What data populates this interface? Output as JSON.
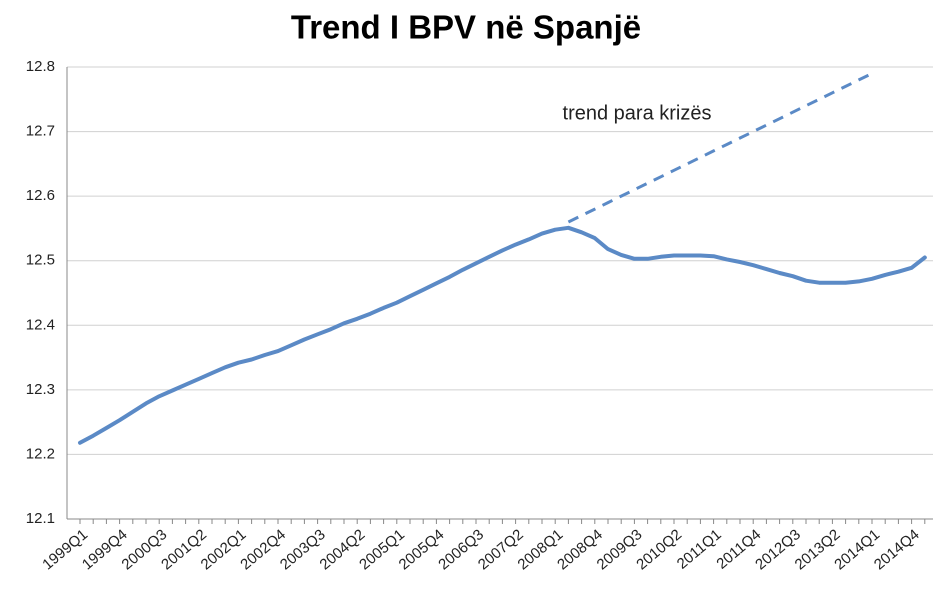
{
  "chart_data": {
    "type": "line",
    "title": "Trend I BPV në Spanjë",
    "annotation": "trend para krizës",
    "categories": [
      "1999Q1",
      null,
      null,
      "1999Q4",
      null,
      null,
      "2000Q3",
      null,
      null,
      "2001Q2",
      null,
      null,
      "2002Q1",
      null,
      null,
      "2002Q4",
      null,
      null,
      "2003Q3",
      null,
      null,
      "2004Q2",
      null,
      null,
      "2005Q1",
      null,
      null,
      "2005Q4",
      null,
      null,
      "2006Q3",
      null,
      null,
      "2007Q2",
      null,
      null,
      "2008Q1",
      null,
      null,
      "2008Q4",
      null,
      null,
      "2009Q3",
      null,
      null,
      "2010Q2",
      null,
      null,
      "2011Q1",
      null,
      null,
      "2011Q4",
      null,
      null,
      "2012Q3",
      null,
      null,
      "2013Q2",
      null,
      null,
      "2014Q1",
      null,
      null,
      "2014Q4",
      null
    ],
    "series": [
      {
        "name": null,
        "color": "#5b8ac6",
        "style": "solid",
        "values": [
          12.218,
          12.229,
          12.241,
          12.253,
          12.266,
          12.279,
          12.29,
          12.299,
          12.308,
          12.317,
          12.326,
          12.335,
          12.342,
          12.347,
          12.354,
          12.36,
          12.369,
          12.378,
          12.386,
          12.394,
          12.403,
          12.41,
          12.418,
          12.427,
          12.435,
          12.445,
          12.455,
          12.465,
          12.475,
          12.486,
          12.496,
          12.506,
          12.516,
          12.525,
          12.533,
          12.542,
          12.548,
          12.551,
          12.544,
          12.535,
          12.518,
          12.509,
          12.503,
          12.503,
          12.506,
          12.508,
          12.508,
          12.508,
          12.507,
          12.502,
          12.498,
          12.493,
          12.487,
          12.481,
          12.476,
          12.469,
          12.466,
          12.466,
          12.466,
          12.468,
          12.472,
          12.478,
          12.483,
          12.489,
          12.505
        ]
      },
      {
        "name": null,
        "color": "#5b8ac6",
        "style": "dashed",
        "values": [
          null,
          null,
          null,
          null,
          null,
          null,
          null,
          null,
          null,
          null,
          null,
          null,
          null,
          null,
          null,
          null,
          null,
          null,
          null,
          null,
          null,
          null,
          null,
          null,
          null,
          null,
          null,
          null,
          null,
          null,
          null,
          null,
          null,
          null,
          null,
          null,
          null,
          12.56,
          12.57,
          12.58,
          12.59,
          12.6,
          12.61,
          12.62,
          12.63,
          12.64,
          12.65,
          12.66,
          12.67,
          12.68,
          12.69,
          12.7,
          12.71,
          12.72,
          12.73,
          12.74,
          12.75,
          12.76,
          12.77,
          12.78,
          12.79,
          null,
          null,
          null,
          null
        ]
      }
    ],
    "ylim": [
      12.1,
      12.8
    ],
    "yticks": [
      12.1,
      12.2,
      12.3,
      12.4,
      12.5,
      12.6,
      12.7,
      12.8
    ],
    "grid": true
  }
}
